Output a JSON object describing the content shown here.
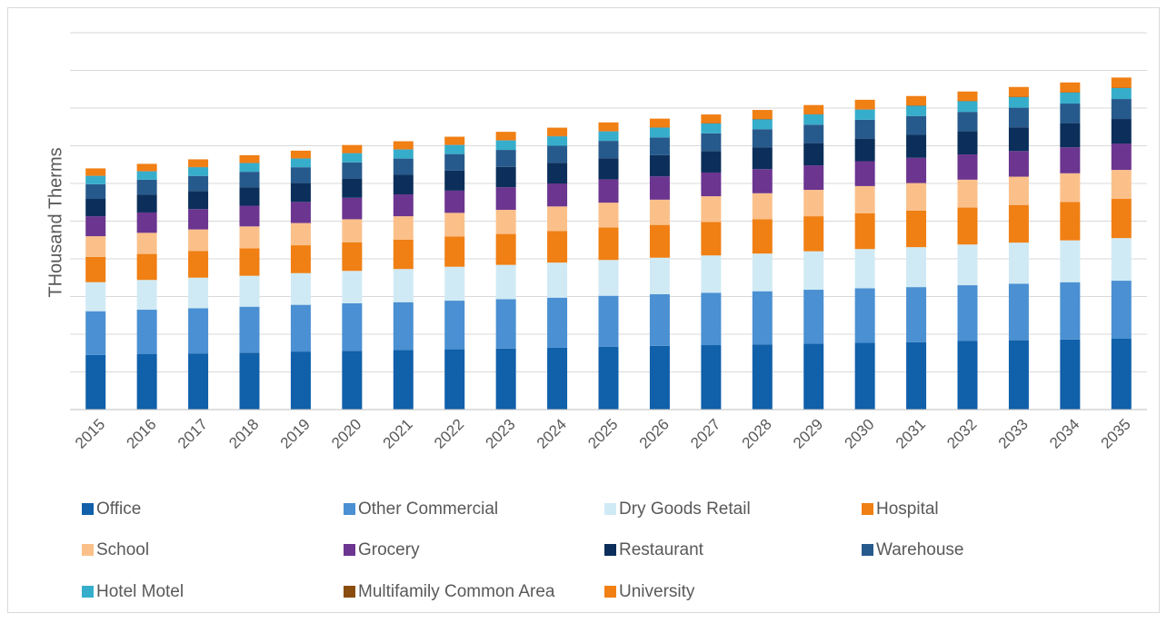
{
  "chart_data": {
    "type": "stacked_bar",
    "y_label": "THousand Therms",
    "categories": [
      "2015",
      "2016",
      "2017",
      "2018",
      "2019",
      "2020",
      "2021",
      "2022",
      "2023",
      "2024",
      "2025",
      "2026",
      "2027",
      "2028",
      "2029",
      "2030",
      "2031",
      "2032",
      "2033",
      "2034",
      "2035"
    ],
    "ylim": [
      0,
      10
    ],
    "yticks": [
      0,
      1,
      2,
      3,
      4,
      5,
      6,
      7,
      8,
      9,
      10
    ],
    "grid": true,
    "series": [
      {
        "name": "Office",
        "color": "#1060aa",
        "values": [
          1.45,
          1.47,
          1.49,
          1.51,
          1.54,
          1.56,
          1.58,
          1.6,
          1.62,
          1.64,
          1.67,
          1.69,
          1.71,
          1.73,
          1.75,
          1.77,
          1.79,
          1.82,
          1.84,
          1.86,
          1.88
        ]
      },
      {
        "name": "Other Commercial",
        "color": "#4a90d2",
        "values": [
          1.16,
          1.18,
          1.2,
          1.22,
          1.24,
          1.26,
          1.27,
          1.29,
          1.31,
          1.33,
          1.35,
          1.37,
          1.39,
          1.41,
          1.43,
          1.45,
          1.46,
          1.48,
          1.5,
          1.52,
          1.54
        ]
      },
      {
        "name": "Dry Goods Retail",
        "color": "#d0eaf5",
        "values": [
          0.77,
          0.79,
          0.81,
          0.82,
          0.84,
          0.86,
          0.88,
          0.9,
          0.91,
          0.93,
          0.95,
          0.97,
          0.99,
          1.0,
          1.02,
          1.04,
          1.06,
          1.08,
          1.09,
          1.11,
          1.13
        ]
      },
      {
        "name": "Hospital",
        "color": "#f07f14",
        "values": [
          0.67,
          0.69,
          0.71,
          0.73,
          0.74,
          0.76,
          0.78,
          0.8,
          0.82,
          0.84,
          0.86,
          0.87,
          0.89,
          0.91,
          0.93,
          0.95,
          0.97,
          0.98,
          1.0,
          1.02,
          1.04
        ]
      },
      {
        "name": "School",
        "color": "#fbc08a",
        "values": [
          0.55,
          0.56,
          0.57,
          0.58,
          0.59,
          0.61,
          0.62,
          0.63,
          0.64,
          0.65,
          0.66,
          0.67,
          0.68,
          0.69,
          0.7,
          0.72,
          0.73,
          0.74,
          0.75,
          0.76,
          0.77
        ]
      },
      {
        "name": "Grocery",
        "color": "#6b3590",
        "values": [
          0.53,
          0.54,
          0.54,
          0.55,
          0.56,
          0.57,
          0.58,
          0.59,
          0.6,
          0.61,
          0.62,
          0.62,
          0.63,
          0.64,
          0.65,
          0.66,
          0.67,
          0.67,
          0.68,
          0.69,
          0.7
        ]
      },
      {
        "name": "Restaurant",
        "color": "#0b2f5a",
        "values": [
          0.46,
          0.47,
          0.48,
          0.49,
          0.5,
          0.51,
          0.52,
          0.53,
          0.54,
          0.55,
          0.56,
          0.56,
          0.57,
          0.58,
          0.59,
          0.6,
          0.61,
          0.62,
          0.63,
          0.64,
          0.65
        ]
      },
      {
        "name": "Warehouse",
        "color": "#275a8c",
        "values": [
          0.39,
          0.4,
          0.4,
          0.41,
          0.42,
          0.43,
          0.43,
          0.44,
          0.45,
          0.45,
          0.46,
          0.47,
          0.47,
          0.48,
          0.49,
          0.5,
          0.5,
          0.51,
          0.52,
          0.52,
          0.53
        ]
      },
      {
        "name": "Hotel Motel",
        "color": "#36aecb",
        "values": [
          0.22,
          0.22,
          0.23,
          0.23,
          0.23,
          0.24,
          0.24,
          0.24,
          0.25,
          0.25,
          0.25,
          0.26,
          0.26,
          0.26,
          0.27,
          0.27,
          0.27,
          0.28,
          0.28,
          0.29,
          0.29
        ]
      },
      {
        "name": "Multifamily Common Area",
        "color": "#8b4c0f",
        "values": [
          0.01,
          0.01,
          0.01,
          0.01,
          0.01,
          0.01,
          0.01,
          0.01,
          0.01,
          0.01,
          0.01,
          0.01,
          0.01,
          0.01,
          0.01,
          0.01,
          0.01,
          0.01,
          0.01,
          0.01,
          0.01
        ]
      },
      {
        "name": "University",
        "color": "#f07f14",
        "values": [
          0.19,
          0.19,
          0.2,
          0.2,
          0.2,
          0.21,
          0.21,
          0.21,
          0.22,
          0.22,
          0.23,
          0.23,
          0.23,
          0.24,
          0.24,
          0.25,
          0.25,
          0.25,
          0.26,
          0.26,
          0.27
        ]
      }
    ]
  }
}
